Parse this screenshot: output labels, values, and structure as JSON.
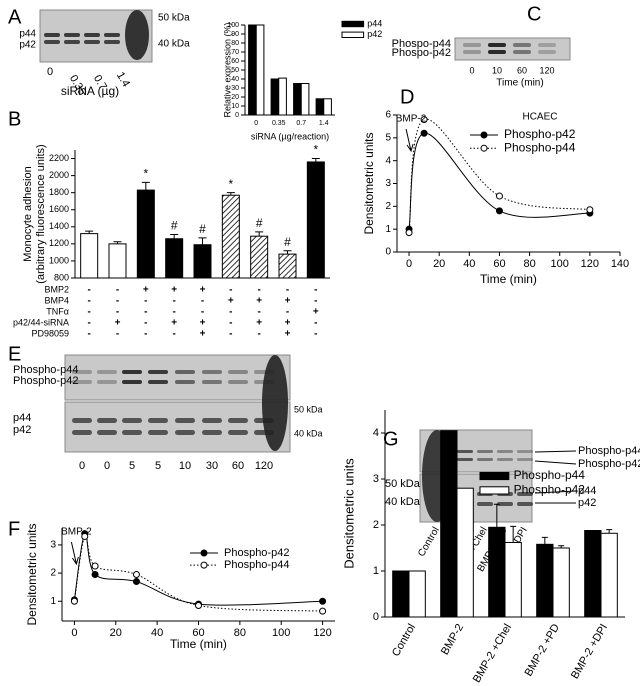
{
  "panel_letters": [
    "A",
    "B",
    "C",
    "D",
    "E",
    "F",
    "G"
  ],
  "blots": [
    {
      "labels": [
        "p44",
        "p42"
      ],
      "markers": [
        "50 kDa",
        "40 kDa"
      ],
      "lanes": [
        "0",
        "0.35",
        "0.7",
        "1.4"
      ],
      "xlabel": "siRNA (µg)"
    },
    {
      "labels": [
        "Phospo-p44",
        "Phospo-p42"
      ],
      "lanes": [
        "0",
        "10",
        "60",
        "120"
      ],
      "xlabel": "Time (min)"
    },
    {
      "labels": [
        "Phospho-p44",
        "Phospho-p42",
        "p44",
        "p42"
      ],
      "markers": [
        "50 kDa",
        "40 kDa"
      ],
      "lanes": [
        "0",
        "0",
        "5",
        "5",
        "10",
        "30",
        "60",
        "120"
      ]
    },
    {
      "labels": [
        "Phospho-p44",
        "Phospho-p42",
        "p44",
        "p42"
      ],
      "markers": [
        "50 kDa",
        "40 kDa"
      ],
      "lanes": [
        "Control",
        "BMP2",
        "BMP2 +Chel",
        "BMP2 +PD",
        "BMP2 +DPI"
      ]
    }
  ],
  "chart_data": [
    {
      "type": "bar",
      "ylabel": "Relative expression (%)",
      "xlabel": "siRNA (µg/reaction)",
      "categories": [
        "0",
        "0.35",
        "0.7",
        "1.4"
      ],
      "series": [
        {
          "name": "p44",
          "color": "#000000",
          "values": [
            100,
            40,
            35,
            18
          ]
        },
        {
          "name": "p42",
          "color": "#ffffff",
          "values": [
            100,
            41,
            35,
            18
          ]
        }
      ],
      "ylim": [
        0,
        100
      ],
      "yticks": [
        0,
        10,
        20,
        30,
        40,
        50,
        60,
        70,
        80,
        90,
        100
      ]
    },
    {
      "type": "bar",
      "ylabel": [
        "Monocyte adhesion",
        "(arbitrary fluorescence units)"
      ],
      "values": [
        1320,
        1200,
        1830,
        1260,
        1190,
        1770,
        1290,
        1080,
        2160
      ],
      "errors": [
        30,
        25,
        90,
        50,
        80,
        30,
        50,
        40,
        40
      ],
      "fills": [
        "white",
        "white",
        "black",
        "black",
        "black",
        "hatched",
        "hatched",
        "hatched",
        "black"
      ],
      "annotations": [
        null,
        null,
        "*",
        "#",
        "#",
        "*",
        "#",
        "#",
        "*"
      ],
      "treatments": [
        {
          "label": "BMP2",
          "signs": [
            "-",
            "-",
            "+",
            "+",
            "+",
            "-",
            "-",
            "-",
            "-"
          ]
        },
        {
          "label": "BMP4",
          "signs": [
            "-",
            "-",
            "-",
            "-",
            "-",
            "+",
            "+",
            "+",
            "-"
          ]
        },
        {
          "label": "TNFα",
          "signs": [
            "-",
            "-",
            "-",
            "-",
            "-",
            "-",
            "-",
            "-",
            "+"
          ]
        },
        {
          "label": "p42/44-siRNA",
          "signs": [
            "-",
            "+",
            "-",
            "+",
            "+",
            "-",
            "+",
            "+",
            "-"
          ]
        },
        {
          "label": "PD98059",
          "signs": [
            "-",
            "-",
            "-",
            "-",
            "+",
            "-",
            "-",
            "+",
            "-"
          ]
        }
      ],
      "ylim": [
        800,
        2300
      ],
      "yticks": [
        800,
        1000,
        1200,
        1400,
        1600,
        1800,
        2000,
        2200
      ]
    },
    {
      "type": "line",
      "title": "HCAEC",
      "annotation": {
        "text": "BMP-2",
        "x": 0
      },
      "xlabel": "Time (min)",
      "ylabel": "Densitometric units",
      "x": [
        0,
        10,
        60,
        120
      ],
      "series": [
        {
          "name": "Phospho-p42",
          "color": "#000000",
          "marker": "filled",
          "dashed": false,
          "values": [
            1.0,
            5.2,
            1.8,
            1.7
          ]
        },
        {
          "name": "Phospho-p44",
          "color": "#000000",
          "marker": "open",
          "dashed": true,
          "values": [
            0.85,
            5.8,
            2.45,
            1.85
          ]
        }
      ],
      "xlim": [
        -8,
        140
      ],
      "xticks": [
        0,
        20,
        40,
        60,
        80,
        100,
        120,
        140
      ],
      "ylim": [
        0,
        6
      ],
      "yticks": [
        0,
        1,
        2,
        3,
        4,
        5,
        6
      ]
    },
    {
      "type": "line",
      "annotation": {
        "text": "BMP-2",
        "x": 0
      },
      "xlabel": "Time (min)",
      "ylabel": "Densitometric units",
      "x": [
        0,
        5,
        10,
        30,
        60,
        120
      ],
      "series": [
        {
          "name": "Phospho-p42",
          "color": "#000000",
          "marker": "filled",
          "dashed": false,
          "values": [
            1.05,
            3.4,
            1.95,
            1.7,
            0.9,
            1.0
          ]
        },
        {
          "name": "Phospho-p44",
          "color": "#000000",
          "marker": "open",
          "dashed": true,
          "values": [
            1.0,
            3.3,
            2.25,
            1.95,
            0.85,
            0.65
          ]
        }
      ],
      "xlim": [
        -6,
        126
      ],
      "xticks": [
        0,
        20,
        40,
        60,
        80,
        100,
        120
      ],
      "ylim": [
        0.3,
        3.6
      ],
      "yticks": [
        1,
        2,
        3
      ]
    },
    {
      "type": "bar",
      "ylabel": "Densitometric units",
      "categories": [
        "Control",
        "BMP-2",
        "BMP-2 +Chel",
        "BMP-2 +PD",
        "BMP-2 +DPI"
      ],
      "series": [
        {
          "name": "Phospho-p44",
          "color": "#000000",
          "values": [
            1.0,
            4.05,
            1.95,
            1.58,
            1.88
          ],
          "errors": [
            0,
            0,
            0.5,
            0.15,
            0
          ]
        },
        {
          "name": "Phospho-p42",
          "color": "#ffffff",
          "values": [
            1.0,
            2.8,
            1.62,
            1.5,
            1.82
          ],
          "errors": [
            0,
            0,
            0.35,
            0.05,
            0.08
          ]
        }
      ],
      "ylim": [
        0,
        4.5
      ],
      "yticks": [
        0,
        1,
        2,
        3,
        4
      ]
    }
  ]
}
